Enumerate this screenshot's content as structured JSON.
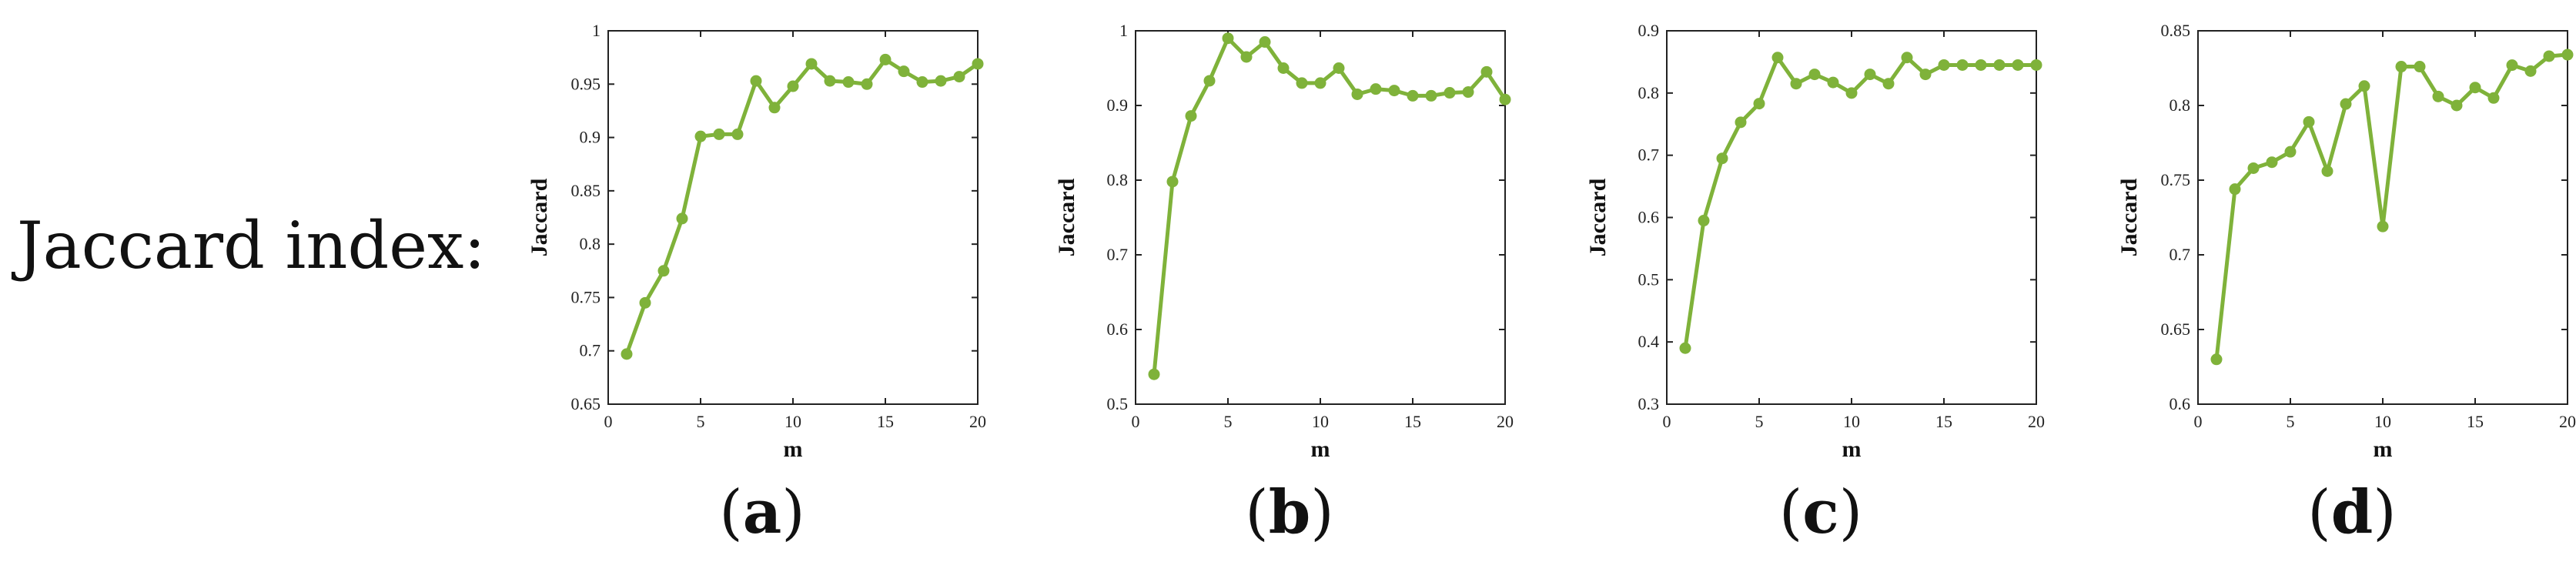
{
  "row_label": "Jaccard index:",
  "series_color": "#7fb23a",
  "chart_data": [
    {
      "type": "line",
      "panel_label": "a",
      "xlabel": "m",
      "ylabel": "Jaccard",
      "xlim": [
        0,
        20
      ],
      "ylim": [
        0.65,
        1
      ],
      "xticks": [
        0,
        5,
        10,
        15,
        20
      ],
      "yticks": [
        0.65,
        0.7,
        0.75,
        0.8,
        0.85,
        0.9,
        0.95,
        1
      ],
      "ytick_labels": [
        "0.65",
        "0.7",
        "0.75",
        "0.8",
        "0.85",
        "0.9",
        "0.95",
        "1"
      ],
      "x": [
        1,
        2,
        3,
        4,
        5,
        6,
        7,
        8,
        9,
        10,
        11,
        12,
        13,
        14,
        15,
        16,
        17,
        18,
        19,
        20
      ],
      "values": [
        0.697,
        0.745,
        0.775,
        0.824,
        0.901,
        0.903,
        0.903,
        0.953,
        0.928,
        0.948,
        0.969,
        0.953,
        0.952,
        0.95,
        0.973,
        0.962,
        0.952,
        0.953,
        0.957,
        0.969
      ]
    },
    {
      "type": "line",
      "panel_label": "b",
      "xlabel": "m",
      "ylabel": "Jaccard",
      "xlim": [
        0,
        20
      ],
      "ylim": [
        0.5,
        1
      ],
      "xticks": [
        0,
        5,
        10,
        15,
        20
      ],
      "yticks": [
        0.5,
        0.6,
        0.7,
        0.8,
        0.9,
        1
      ],
      "ytick_labels": [
        "0.5",
        "0.6",
        "0.7",
        "0.8",
        "0.9",
        "1"
      ],
      "x": [
        1,
        2,
        3,
        4,
        5,
        6,
        7,
        8,
        9,
        10,
        11,
        12,
        13,
        14,
        15,
        16,
        17,
        18,
        19,
        20
      ],
      "values": [
        0.54,
        0.798,
        0.886,
        0.933,
        0.99,
        0.965,
        0.985,
        0.95,
        0.93,
        0.93,
        0.95,
        0.915,
        0.922,
        0.92,
        0.913,
        0.913,
        0.917,
        0.918,
        0.945,
        0.908
      ]
    },
    {
      "type": "line",
      "panel_label": "c",
      "xlabel": "m",
      "ylabel": "Jaccard",
      "xlim": [
        0,
        20
      ],
      "ylim": [
        0.3,
        0.9
      ],
      "xticks": [
        0,
        5,
        10,
        15,
        20
      ],
      "yticks": [
        0.3,
        0.4,
        0.5,
        0.6,
        0.7,
        0.8,
        0.9
      ],
      "ytick_labels": [
        "0.3",
        "0.4",
        "0.5",
        "0.6",
        "0.7",
        "0.8",
        "0.9"
      ],
      "x": [
        1,
        2,
        3,
        4,
        5,
        6,
        7,
        8,
        9,
        10,
        11,
        12,
        13,
        14,
        15,
        16,
        17,
        18,
        19,
        20
      ],
      "values": [
        0.39,
        0.595,
        0.695,
        0.753,
        0.783,
        0.857,
        0.815,
        0.83,
        0.817,
        0.8,
        0.83,
        0.815,
        0.857,
        0.83,
        0.845,
        0.845,
        0.845,
        0.845,
        0.845,
        0.845
      ]
    },
    {
      "type": "line",
      "panel_label": "d",
      "xlabel": "m",
      "ylabel": "Jaccard",
      "xlim": [
        0,
        20
      ],
      "ylim": [
        0.6,
        0.85
      ],
      "xticks": [
        0,
        5,
        10,
        15,
        20
      ],
      "yticks": [
        0.6,
        0.65,
        0.7,
        0.75,
        0.8,
        0.85
      ],
      "ytick_labels": [
        "0.6",
        "0.65",
        "0.7",
        "0.75",
        "0.8",
        "0.85"
      ],
      "x": [
        1,
        2,
        3,
        4,
        5,
        6,
        7,
        8,
        9,
        10,
        11,
        12,
        13,
        14,
        15,
        16,
        17,
        18,
        19,
        20
      ],
      "values": [
        0.63,
        0.744,
        0.758,
        0.762,
        0.769,
        0.789,
        0.756,
        0.801,
        0.813,
        0.719,
        0.826,
        0.826,
        0.806,
        0.8,
        0.812,
        0.805,
        0.827,
        0.823,
        0.833,
        0.834
      ]
    }
  ]
}
